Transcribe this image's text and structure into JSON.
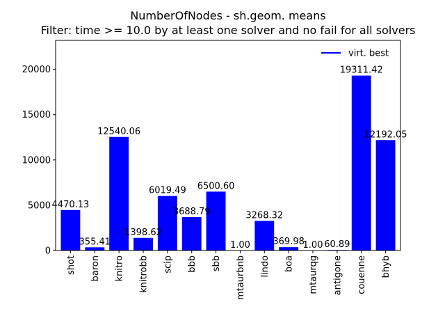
{
  "chart_data": {
    "type": "bar",
    "title": "NumberOfNodes - sh.geom. means",
    "subtitle": "Filter: time >= 10.0 by at least one solver and no fail for all solvers",
    "xlabel": "",
    "ylabel": "",
    "categories": [
      "shot",
      "baron",
      "knitro",
      "knitrobb",
      "scip",
      "bbb",
      "sbb",
      "mtaurbnb",
      "lindo",
      "boa",
      "mtaurqg",
      "antigone",
      "couenne",
      "bhyb"
    ],
    "values": [
      4470.13,
      355.41,
      12540.06,
      1398.62,
      6019.49,
      3688.79,
      6500.6,
      1.0,
      3268.32,
      369.98,
      1.0,
      60.89,
      19311.42,
      12192.05
    ],
    "value_labels": [
      "4470.13",
      "355.41",
      "12540.06",
      "1398.62",
      "6019.49",
      "3688.79",
      "6500.60",
      "1.00",
      "3268.32",
      "369.98",
      "1.00",
      "60.89",
      "19311.42",
      "12192.05"
    ],
    "ylim": [
      0,
      23200
    ],
    "yticks": [
      0,
      5000,
      10000,
      15000,
      20000
    ],
    "bar_color": "#0000ff",
    "grid": false,
    "legend": {
      "label": "virt. best",
      "color": "#0000ff",
      "placement": "top-right"
    }
  }
}
